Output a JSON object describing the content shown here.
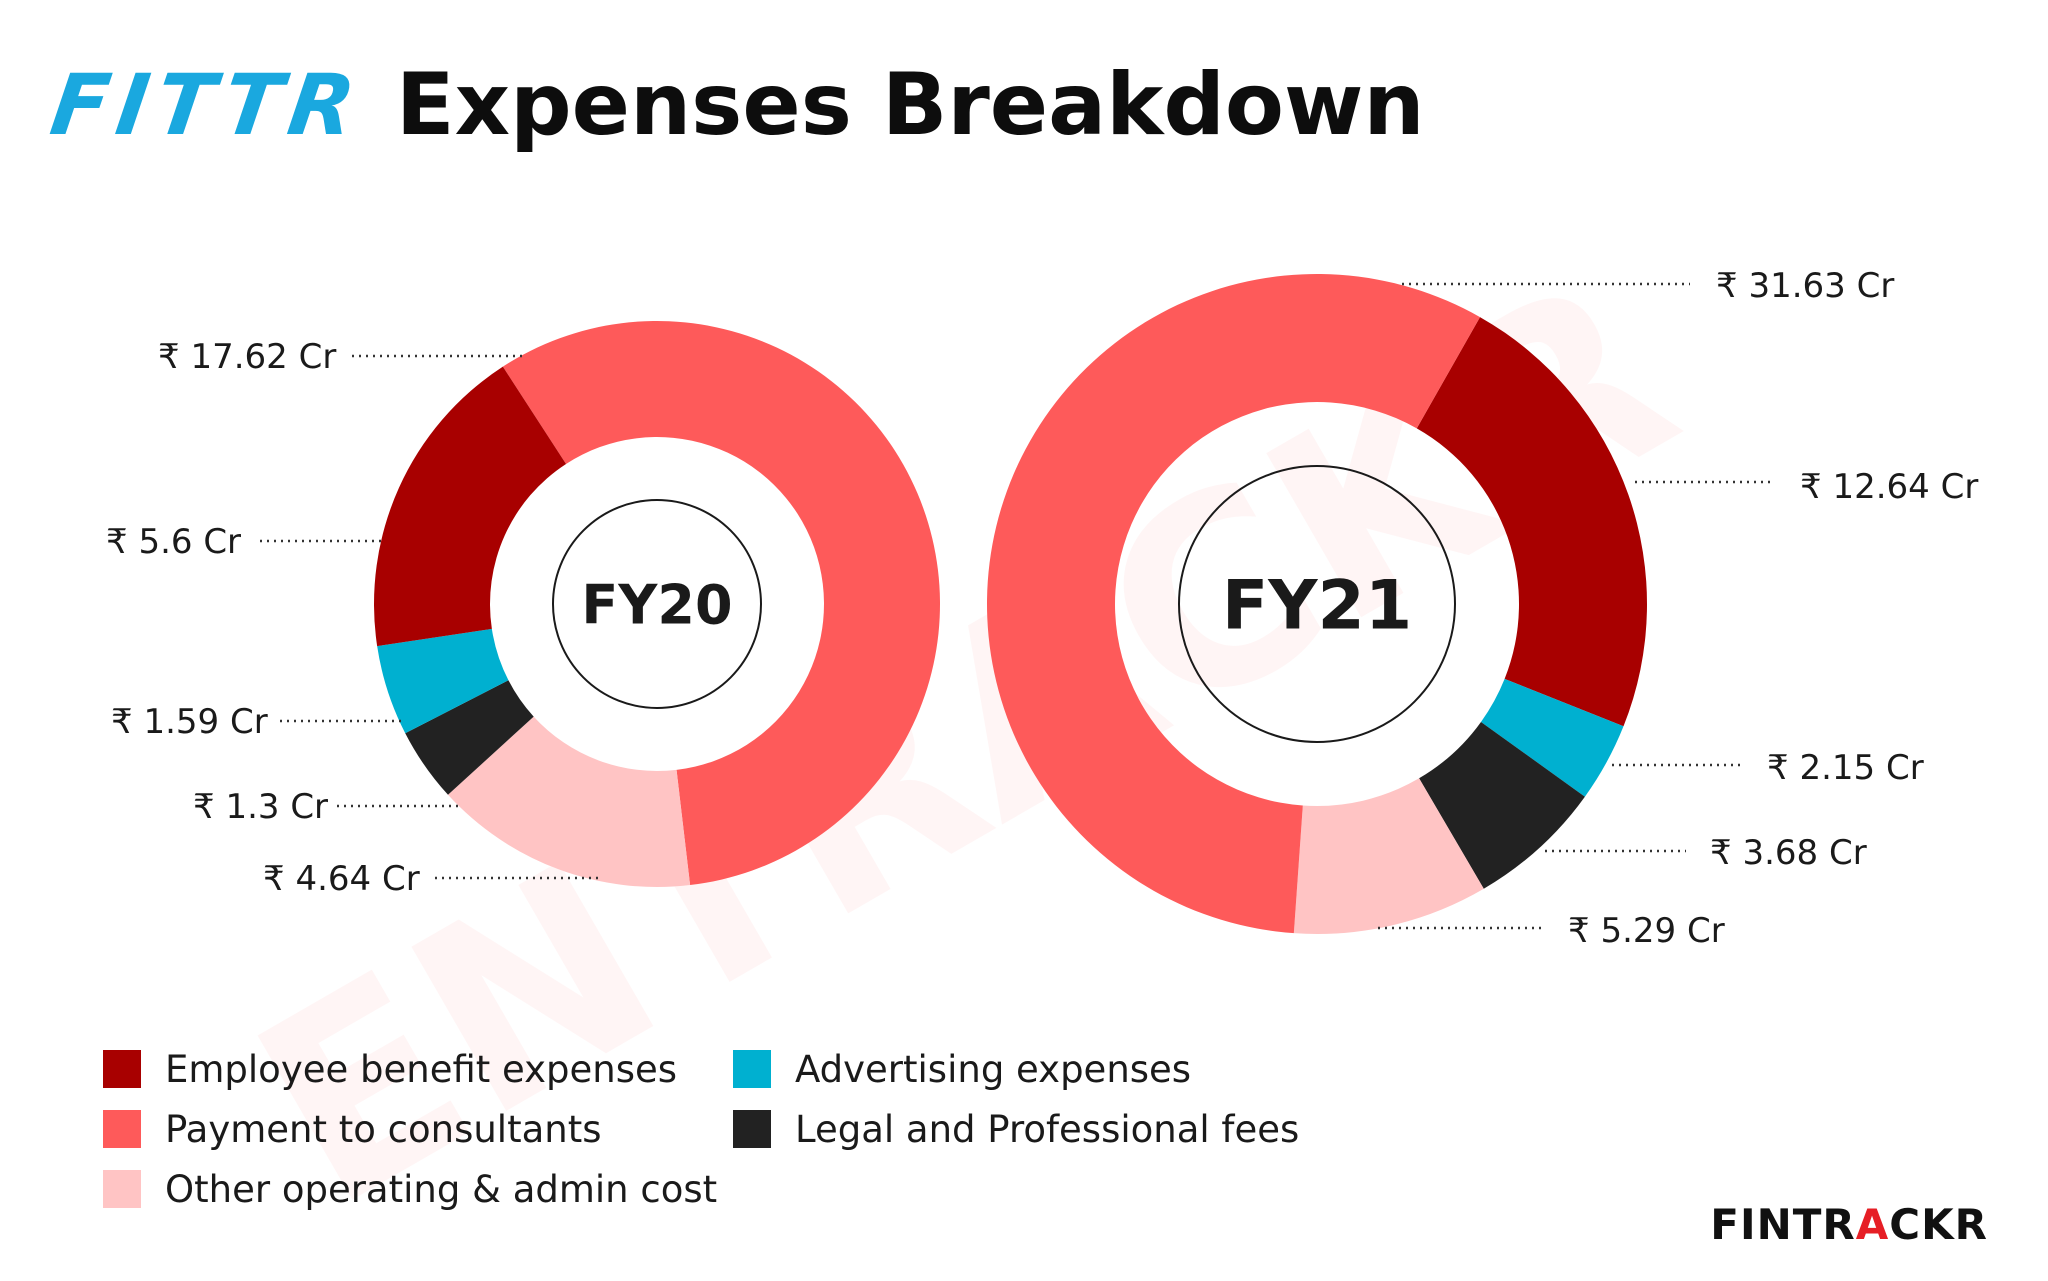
{
  "header": {
    "brand": "FITTR",
    "brand_color": "#1aa8df",
    "title": "Expenses Breakdown"
  },
  "watermark": "ENTRACKR",
  "footer": {
    "brand_prefix": "FINTR",
    "brand_accent": "A",
    "brand_suffix": "CKR"
  },
  "colors": {
    "employee": "#a80000",
    "consultants": "#fe5a5a",
    "other": "#ffc4c4",
    "advertising": "#00b0d0",
    "legal": "#222222"
  },
  "legend": [
    {
      "key": "employee",
      "label": "Employee benefit expenses",
      "color": "#a80000"
    },
    {
      "key": "advertising",
      "label": "Advertising expenses",
      "color": "#00b0d0"
    },
    {
      "key": "consultants",
      "label": "Payment to consultants",
      "color": "#fe5a5a"
    },
    {
      "key": "legal",
      "label": "Legal and Professional fees",
      "color": "#222222"
    },
    {
      "key": "other",
      "label": "Other operating & admin cost",
      "color": "#ffc4c4"
    }
  ],
  "chart_data": [
    {
      "type": "pie",
      "center_label": "FY20",
      "unit": "Cr",
      "slices": [
        {
          "name": "Payment to consultants",
          "value": 17.62,
          "label": "₹ 17.62 Cr",
          "color": "#fe5a5a"
        },
        {
          "name": "Other operating & admin cost",
          "value": 4.64,
          "label": "₹ 4.64 Cr",
          "color": "#ffc4c4"
        },
        {
          "name": "Legal and Professional fees",
          "value": 1.3,
          "label": "₹ 1.3 Cr",
          "color": "#222222"
        },
        {
          "name": "Advertising expenses",
          "value": 1.59,
          "label": "₹ 1.59 Cr",
          "color": "#00b0d0"
        },
        {
          "name": "Employee benefit expenses",
          "value": 5.6,
          "label": "₹ 5.6 Cr",
          "color": "#a80000"
        }
      ]
    },
    {
      "type": "pie",
      "center_label": "FY21",
      "unit": "Cr",
      "slices": [
        {
          "name": "Employee benefit expenses",
          "value": 12.64,
          "label": "₹ 12.64 Cr",
          "color": "#a80000"
        },
        {
          "name": "Advertising expenses",
          "value": 2.15,
          "label": "₹ 2.15 Cr",
          "color": "#00b0d0"
        },
        {
          "name": "Legal and Professional fees",
          "value": 3.68,
          "label": "₹ 3.68 Cr",
          "color": "#222222"
        },
        {
          "name": "Other operating & admin cost",
          "value": 5.29,
          "label": "₹ 5.29 Cr",
          "color": "#ffc4c4"
        },
        {
          "name": "Payment to consultants",
          "value": 31.63,
          "label": "₹ 31.63 Cr",
          "color": "#fe5a5a"
        }
      ]
    }
  ]
}
